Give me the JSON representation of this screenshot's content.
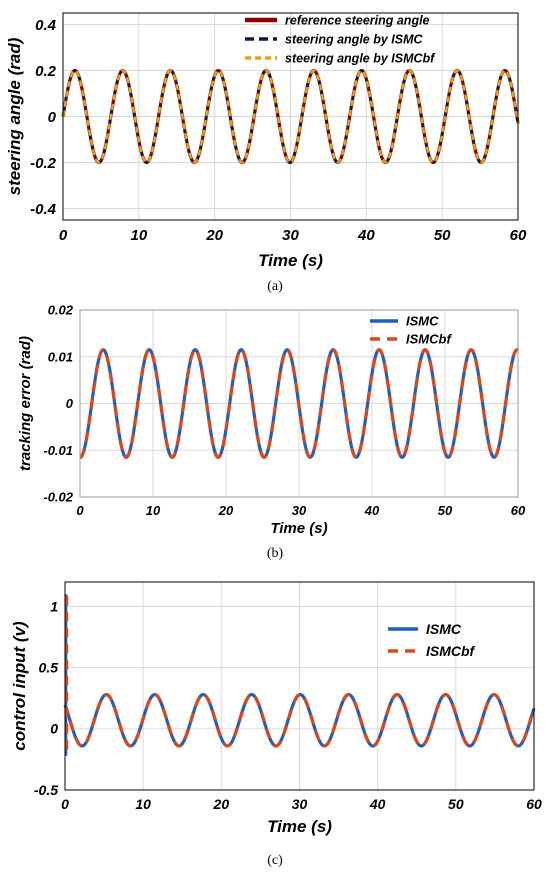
{
  "chart_data": [
    {
      "type": "line",
      "caption": "(a)",
      "xlabel": "Time (s)",
      "ylabel": "steering angle (rad)",
      "xlim": [
        0,
        60
      ],
      "ylim": [
        -0.45,
        0.45
      ],
      "xticks": [
        0,
        10,
        20,
        30,
        40,
        50,
        60
      ],
      "xticklabels": [
        "0",
        "10",
        "20",
        "30",
        "40",
        "50",
        "60"
      ],
      "yticks": [
        -0.4,
        -0.2,
        0,
        0.2,
        0.4
      ],
      "yticklabels": [
        "-0.4",
        "-0.2",
        "0",
        "0.2",
        "0.4"
      ],
      "grid": true,
      "legend_position": "top-right",
      "signal": {
        "amplitude": 0.2,
        "period": 6.3,
        "phase": 0,
        "offset": 0
      },
      "series": [
        {
          "name": "reference steering angle",
          "color": "#8b0000",
          "style": "solid"
        },
        {
          "name": "steering angle by ISMC",
          "color": "#0b1a4a",
          "style": "dashed"
        },
        {
          "name": "steering angle by ISMCbf",
          "color": "#e8a215",
          "style": "dashed"
        }
      ]
    },
    {
      "type": "line",
      "caption": "(b)",
      "xlabel": "Time (s)",
      "ylabel": "tracking error (rad)",
      "xlim": [
        0,
        60
      ],
      "ylim": [
        -0.02,
        0.02
      ],
      "xticks": [
        0,
        10,
        20,
        30,
        40,
        50,
        60
      ],
      "xticklabels": [
        "0",
        "10",
        "20",
        "30",
        "40",
        "50",
        "60"
      ],
      "yticks": [
        -0.02,
        -0.01,
        0,
        0.01,
        0.02
      ],
      "yticklabels": [
        "-0.02",
        "-0.01",
        "0",
        "0.01",
        "0.02"
      ],
      "grid": true,
      "legend_position": "top-right",
      "signal": {
        "amplitude": 0.0115,
        "period": 6.3,
        "phase": -1.6,
        "offset": 0
      },
      "series": [
        {
          "name": "ISMC",
          "color": "#1f5fbf",
          "style": "solid"
        },
        {
          "name": "ISMCbf",
          "color": "#d9481c",
          "style": "dashed"
        }
      ]
    },
    {
      "type": "line",
      "caption": "(c)",
      "xlabel": "Time (s)",
      "ylabel": "control input (v)",
      "xlim": [
        0,
        60
      ],
      "ylim": [
        -0.5,
        1.2
      ],
      "xticks": [
        0,
        10,
        20,
        30,
        40,
        50,
        60
      ],
      "xticklabels": [
        "0",
        "10",
        "20",
        "30",
        "40",
        "50",
        "60"
      ],
      "yticks": [
        -0.5,
        0,
        0.5,
        1
      ],
      "yticklabels": [
        "-0.5",
        "0",
        "0.5",
        "1"
      ],
      "grid": true,
      "legend_position": "right",
      "signal": {
        "amplitude": 0.21,
        "period": 6.2,
        "phase": 2.5,
        "offset": 0.07
      },
      "spike": {
        "x": 0,
        "ymin": -0.22,
        "ymax": 1.1
      },
      "series": [
        {
          "name": "ISMC",
          "color": "#1f5fbf",
          "style": "solid"
        },
        {
          "name": "ISMCbf",
          "color": "#d9481c",
          "style": "dashed"
        }
      ]
    }
  ]
}
